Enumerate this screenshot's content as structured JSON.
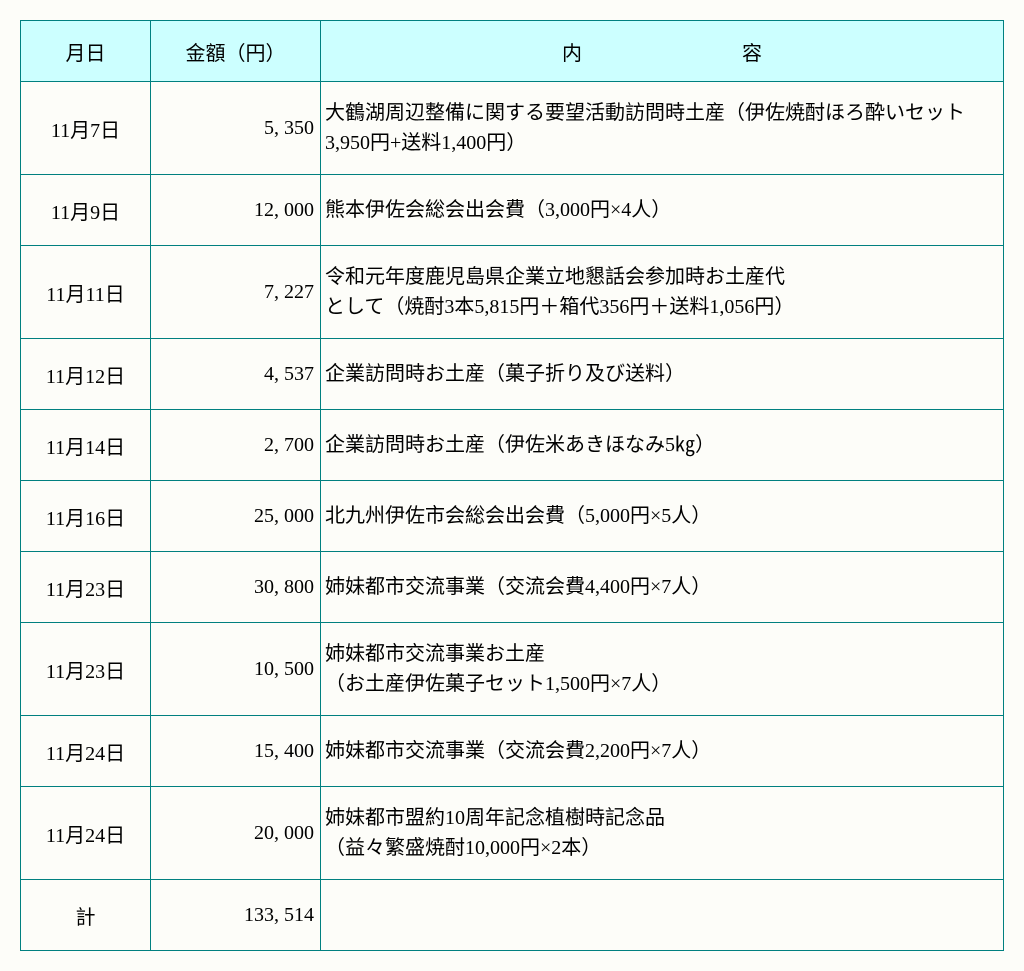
{
  "table": {
    "headers": {
      "date": "月日",
      "amount": "金額（円）",
      "desc": "内　　容"
    },
    "rows": [
      {
        "date": "11月7日",
        "amount": "5,350",
        "desc": "大鶴湖周辺整備に関する要望活動訪問時土産（伊佐焼酎ほろ酔いセット3,950円+送料1,400円）",
        "tall": true
      },
      {
        "date": "11月9日",
        "amount": "12,000",
        "desc": "熊本伊佐会総会出会費（3,000円×4人）"
      },
      {
        "date": "11月11日",
        "amount": "7,227",
        "desc": "令和元年度鹿児島県企業立地懇話会参加時お土産代\nとして（焼酎3本5,815円＋箱代356円＋送料1,056円）",
        "tall": true
      },
      {
        "date": "11月12日",
        "amount": "4,537",
        "desc": "企業訪問時お土産（菓子折り及び送料）"
      },
      {
        "date": "11月14日",
        "amount": "2,700",
        "desc": "企業訪問時お土産（伊佐米あきほなみ5㎏）"
      },
      {
        "date": "11月16日",
        "amount": "25,000",
        "desc": "北九州伊佐市会総会出会費（5,000円×5人）"
      },
      {
        "date": "11月23日",
        "amount": "30,800",
        "desc": "姉妹都市交流事業（交流会費4,400円×7人）"
      },
      {
        "date": "11月23日",
        "amount": "10,500",
        "desc": "姉妹都市交流事業お土産\n（お土産伊佐菓子セット1,500円×7人）",
        "tall": true
      },
      {
        "date": "11月24日",
        "amount": "15,400",
        "desc": "姉妹都市交流事業（交流会費2,200円×7人）"
      },
      {
        "date": "11月24日",
        "amount": "20,000",
        "desc": "姉妹都市盟約10周年記念植樹時記念品\n（益々繁盛焼酎10,000円×2本）",
        "tall": true
      }
    ],
    "total": {
      "label": "計",
      "amount": "133,514"
    }
  }
}
